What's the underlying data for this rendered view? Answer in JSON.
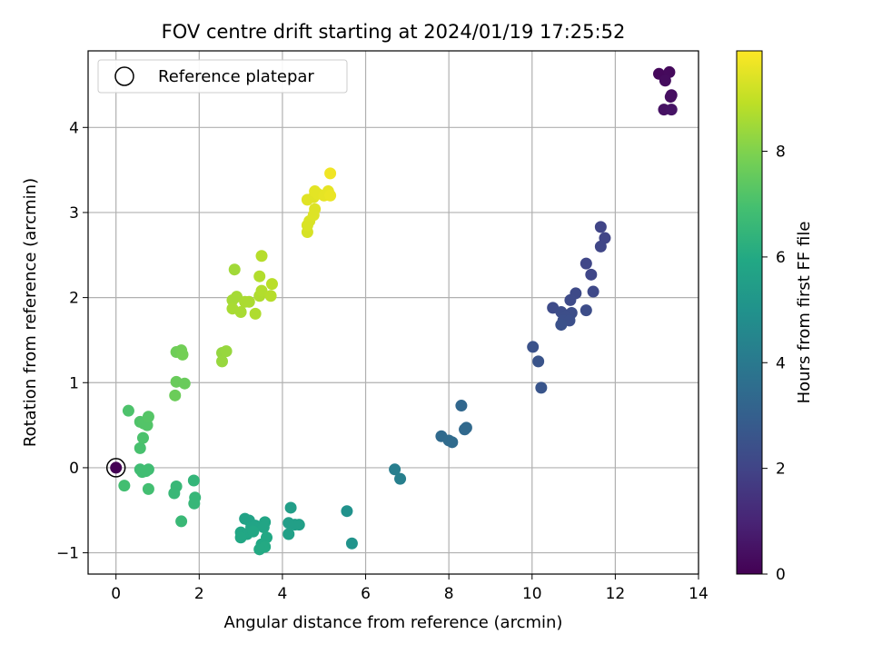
{
  "chart_data": {
    "type": "scatter",
    "title": "FOV centre drift starting at 2024/01/19 17:25:52",
    "xlabel": "Angular distance from reference (arcmin)",
    "ylabel": "Rotation from reference (arcmin)",
    "xlim": [
      -0.67,
      14
    ],
    "ylim": [
      -1.25,
      4.9
    ],
    "xticks": [
      0,
      2,
      4,
      6,
      8,
      10,
      12,
      14
    ],
    "yticks": [
      -1,
      0,
      1,
      2,
      3,
      4
    ],
    "xtick_labels": [
      "0",
      "2",
      "4",
      "6",
      "8",
      "10",
      "12",
      "14"
    ],
    "ytick_labels": [
      "−1",
      "0",
      "1",
      "2",
      "3",
      "4"
    ],
    "grid": true,
    "colormap": "viridis",
    "colorbar": {
      "label": "Hours from first FF file",
      "range": [
        0,
        9.9
      ],
      "ticks": [
        0,
        2,
        4,
        6,
        8
      ],
      "tick_labels": [
        "0",
        "2",
        "4",
        "6",
        "8"
      ]
    },
    "legend": {
      "position": "top-left",
      "entries": [
        "Reference platepar"
      ]
    },
    "reference_point": {
      "x": 0,
      "y": 0,
      "hours": 0
    },
    "points": [
      {
        "x": 13.05,
        "y": 4.63,
        "h": 0.2
      },
      {
        "x": 13.3,
        "y": 4.65,
        "h": 0.25
      },
      {
        "x": 13.2,
        "y": 4.55,
        "h": 0.3
      },
      {
        "x": 13.35,
        "y": 4.38,
        "h": 0.35
      },
      {
        "x": 13.33,
        "y": 4.36,
        "h": 0.4
      },
      {
        "x": 13.17,
        "y": 4.21,
        "h": 0.45
      },
      {
        "x": 13.35,
        "y": 4.21,
        "h": 0.5
      },
      {
        "x": 11.65,
        "y": 2.83,
        "h": 2.0
      },
      {
        "x": 11.75,
        "y": 2.7,
        "h": 2.0
      },
      {
        "x": 11.65,
        "y": 2.6,
        "h": 2.05
      },
      {
        "x": 11.3,
        "y": 2.4,
        "h": 2.1
      },
      {
        "x": 11.42,
        "y": 2.27,
        "h": 2.1
      },
      {
        "x": 11.47,
        "y": 2.07,
        "h": 2.15
      },
      {
        "x": 11.05,
        "y": 2.05,
        "h": 2.2
      },
      {
        "x": 10.92,
        "y": 1.97,
        "h": 2.25
      },
      {
        "x": 10.5,
        "y": 1.88,
        "h": 2.25
      },
      {
        "x": 11.3,
        "y": 1.85,
        "h": 2.3
      },
      {
        "x": 10.7,
        "y": 1.83,
        "h": 2.3
      },
      {
        "x": 10.95,
        "y": 1.82,
        "h": 2.35
      },
      {
        "x": 10.8,
        "y": 1.78,
        "h": 2.35
      },
      {
        "x": 10.75,
        "y": 1.73,
        "h": 2.4
      },
      {
        "x": 10.9,
        "y": 1.73,
        "h": 2.4
      },
      {
        "x": 10.7,
        "y": 1.68,
        "h": 2.45
      },
      {
        "x": 10.02,
        "y": 1.42,
        "h": 2.5
      },
      {
        "x": 10.15,
        "y": 1.25,
        "h": 2.55
      },
      {
        "x": 10.22,
        "y": 0.94,
        "h": 2.6
      },
      {
        "x": 8.3,
        "y": 0.73,
        "h": 3.3
      },
      {
        "x": 8.42,
        "y": 0.47,
        "h": 3.35
      },
      {
        "x": 8.38,
        "y": 0.45,
        "h": 3.35
      },
      {
        "x": 7.82,
        "y": 0.37,
        "h": 3.4
      },
      {
        "x": 8.0,
        "y": 0.32,
        "h": 3.45
      },
      {
        "x": 8.08,
        "y": 0.3,
        "h": 3.45
      },
      {
        "x": 6.7,
        "y": -0.02,
        "h": 4.2
      },
      {
        "x": 6.83,
        "y": -0.13,
        "h": 4.25
      },
      {
        "x": 5.55,
        "y": -0.51,
        "h": 5.0
      },
      {
        "x": 5.67,
        "y": -0.89,
        "h": 5.05
      },
      {
        "x": 4.2,
        "y": -0.47,
        "h": 5.5
      },
      {
        "x": 4.15,
        "y": -0.65,
        "h": 5.5
      },
      {
        "x": 4.3,
        "y": -0.67,
        "h": 5.55
      },
      {
        "x": 4.4,
        "y": -0.67,
        "h": 5.55
      },
      {
        "x": 4.15,
        "y": -0.78,
        "h": 5.6
      },
      {
        "x": 3.1,
        "y": -0.6,
        "h": 5.7
      },
      {
        "x": 3.2,
        "y": -0.62,
        "h": 5.7
      },
      {
        "x": 3.25,
        "y": -0.7,
        "h": 5.75
      },
      {
        "x": 3.35,
        "y": -0.68,
        "h": 5.75
      },
      {
        "x": 3.58,
        "y": -0.64,
        "h": 5.8
      },
      {
        "x": 3.55,
        "y": -0.7,
        "h": 5.8
      },
      {
        "x": 3.0,
        "y": -0.76,
        "h": 5.85
      },
      {
        "x": 3.15,
        "y": -0.78,
        "h": 5.85
      },
      {
        "x": 3.3,
        "y": -0.75,
        "h": 5.9
      },
      {
        "x": 3.0,
        "y": -0.82,
        "h": 5.9
      },
      {
        "x": 3.62,
        "y": -0.82,
        "h": 5.95
      },
      {
        "x": 3.5,
        "y": -0.9,
        "h": 5.95
      },
      {
        "x": 3.58,
        "y": -0.93,
        "h": 6.0
      },
      {
        "x": 3.45,
        "y": -0.96,
        "h": 6.0
      },
      {
        "x": 1.87,
        "y": -0.15,
        "h": 6.5
      },
      {
        "x": 1.9,
        "y": -0.35,
        "h": 6.55
      },
      {
        "x": 1.88,
        "y": -0.42,
        "h": 6.55
      },
      {
        "x": 1.45,
        "y": -0.22,
        "h": 6.6
      },
      {
        "x": 1.4,
        "y": -0.3,
        "h": 6.6
      },
      {
        "x": 1.57,
        "y": -0.63,
        "h": 6.65
      },
      {
        "x": 0.58,
        "y": -0.02,
        "h": 6.8
      },
      {
        "x": 0.78,
        "y": -0.02,
        "h": 6.8
      },
      {
        "x": 0.63,
        "y": -0.05,
        "h": 6.85
      },
      {
        "x": 0.72,
        "y": -0.04,
        "h": 6.85
      },
      {
        "x": 0.2,
        "y": -0.21,
        "h": 6.9
      },
      {
        "x": 0.78,
        "y": -0.25,
        "h": 6.9
      },
      {
        "x": 0.58,
        "y": 0.23,
        "h": 7.0
      },
      {
        "x": 0.65,
        "y": 0.35,
        "h": 7.05
      },
      {
        "x": 0.3,
        "y": 0.67,
        "h": 7.1
      },
      {
        "x": 0.58,
        "y": 0.54,
        "h": 7.15
      },
      {
        "x": 0.67,
        "y": 0.52,
        "h": 7.2
      },
      {
        "x": 0.75,
        "y": 0.5,
        "h": 7.2
      },
      {
        "x": 0.78,
        "y": 0.6,
        "h": 7.25
      },
      {
        "x": 1.45,
        "y": 1.01,
        "h": 7.6
      },
      {
        "x": 1.65,
        "y": 0.99,
        "h": 7.6
      },
      {
        "x": 1.42,
        "y": 0.85,
        "h": 7.65
      },
      {
        "x": 1.45,
        "y": 1.36,
        "h": 7.7
      },
      {
        "x": 1.57,
        "y": 1.38,
        "h": 7.75
      },
      {
        "x": 1.6,
        "y": 1.33,
        "h": 7.8
      },
      {
        "x": 2.55,
        "y": 1.35,
        "h": 8.3
      },
      {
        "x": 2.65,
        "y": 1.37,
        "h": 8.35
      },
      {
        "x": 2.55,
        "y": 1.25,
        "h": 8.35
      },
      {
        "x": 2.85,
        "y": 2.33,
        "h": 8.5
      },
      {
        "x": 2.8,
        "y": 1.97,
        "h": 8.55
      },
      {
        "x": 2.9,
        "y": 2.01,
        "h": 8.55
      },
      {
        "x": 2.8,
        "y": 1.87,
        "h": 8.6
      },
      {
        "x": 3.0,
        "y": 1.83,
        "h": 8.6
      },
      {
        "x": 3.1,
        "y": 1.95,
        "h": 8.65
      },
      {
        "x": 3.2,
        "y": 1.95,
        "h": 8.65
      },
      {
        "x": 3.35,
        "y": 1.81,
        "h": 8.7
      },
      {
        "x": 3.45,
        "y": 2.02,
        "h": 8.7
      },
      {
        "x": 3.5,
        "y": 2.08,
        "h": 8.75
      },
      {
        "x": 3.45,
        "y": 2.25,
        "h": 8.75
      },
      {
        "x": 3.5,
        "y": 2.49,
        "h": 8.8
      },
      {
        "x": 3.72,
        "y": 2.02,
        "h": 8.8
      },
      {
        "x": 3.75,
        "y": 2.16,
        "h": 8.85
      },
      {
        "x": 4.6,
        "y": 2.77,
        "h": 9.3
      },
      {
        "x": 4.6,
        "y": 2.85,
        "h": 9.35
      },
      {
        "x": 4.65,
        "y": 2.9,
        "h": 9.35
      },
      {
        "x": 4.75,
        "y": 2.97,
        "h": 9.4
      },
      {
        "x": 4.78,
        "y": 3.04,
        "h": 9.4
      },
      {
        "x": 4.6,
        "y": 3.15,
        "h": 9.45
      },
      {
        "x": 4.75,
        "y": 3.18,
        "h": 9.45
      },
      {
        "x": 4.78,
        "y": 3.25,
        "h": 9.5
      },
      {
        "x": 4.85,
        "y": 3.22,
        "h": 9.5
      },
      {
        "x": 5.0,
        "y": 3.2,
        "h": 9.55
      },
      {
        "x": 5.1,
        "y": 3.25,
        "h": 9.55
      },
      {
        "x": 5.15,
        "y": 3.2,
        "h": 9.6
      },
      {
        "x": 5.15,
        "y": 3.46,
        "h": 9.7
      }
    ]
  }
}
